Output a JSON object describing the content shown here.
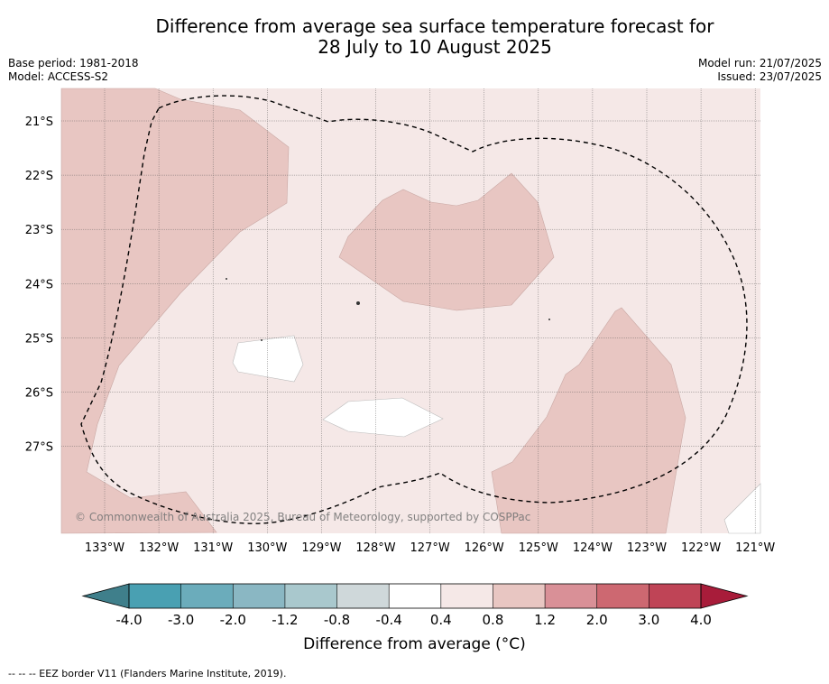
{
  "header": {
    "title_line1": "Difference from average sea surface temperature forecast for",
    "title_line2": "28 July to 10 August 2025",
    "base_period": "Base period: 1981-2018",
    "model": "Model: ACCESS-S2",
    "model_run": "Model run: 21/07/2025",
    "issued": "Issued: 23/07/2025"
  },
  "map": {
    "lat_labels": [
      "21°S",
      "22°S",
      "23°S",
      "24°S",
      "25°S",
      "26°S",
      "27°S"
    ],
    "lon_labels": [
      "133°W",
      "132°W",
      "131°W",
      "130°W",
      "129°W",
      "128°W",
      "127°W",
      "126°W",
      "125°W",
      "124°W",
      "123°W",
      "122°W",
      "121°W"
    ],
    "watermark": "© Commonwealth of Australia 2025, Bureau of Meteorology, supported by COSPPac",
    "colors": {
      "background_0.4_0.8": "#f5e8e7",
      "band_0.8_1.2": "#e8c6c2",
      "band_-0.4_0.4": "#ffffff",
      "grid": "#555555"
    },
    "eez_border": "dashed"
  },
  "colorbar": {
    "tick_labels": [
      "-4.0",
      "-3.0",
      "-2.0",
      "-1.2",
      "-0.8",
      "-0.4",
      "0.4",
      "0.8",
      "1.2",
      "2.0",
      "3.0",
      "4.0"
    ],
    "colors": [
      "#49a0b2",
      "#6bacbb",
      "#8ab7c3",
      "#a9c8cd",
      "#cfd8da",
      "#ffffff",
      "#f5e8e7",
      "#e8c6c2",
      "#d99097",
      "#cd6871",
      "#bf4456"
    ],
    "under_color": "#3f7f8b",
    "over_color": "#a81c3a",
    "label": "Difference from average (°C)"
  },
  "footnote": "--  --  -- EEZ border V11 (Flanders Marine Institute, 2019)."
}
